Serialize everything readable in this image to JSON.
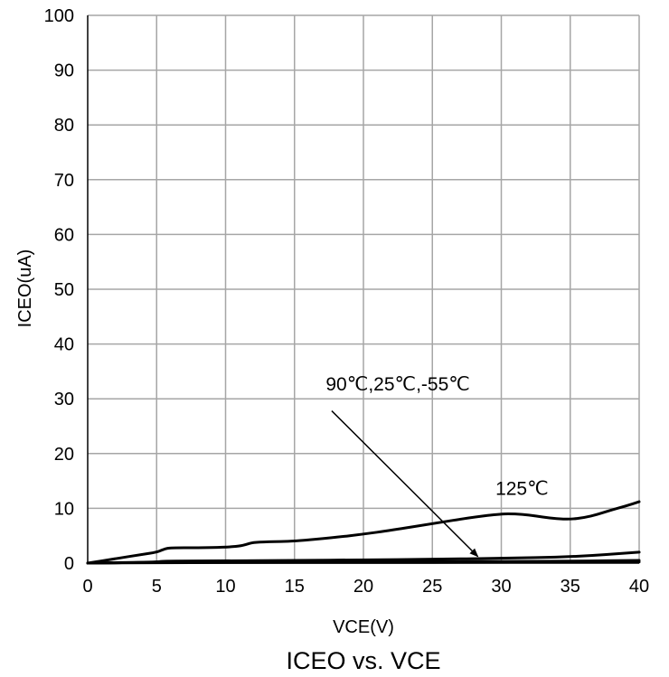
{
  "chart_data": {
    "type": "line",
    "title": "ICEO vs. VCE",
    "xlabel": "VCE(V)",
    "ylabel": "ICEO(uA)",
    "xlim": [
      0,
      40
    ],
    "ylim": [
      0,
      100
    ],
    "xticks": [
      0,
      5,
      10,
      15,
      20,
      25,
      30,
      35,
      40
    ],
    "yticks": [
      0,
      10,
      20,
      30,
      40,
      50,
      60,
      70,
      80,
      90,
      100
    ],
    "grid": true,
    "colors": {
      "grid": "#a6a6a6",
      "line": "#000000",
      "axis": "#000000"
    },
    "series": [
      {
        "name": "125℃",
        "x": [
          0,
          2,
          4,
          5,
          5.3,
          5.6,
          6,
          8,
          10,
          11,
          11.5,
          12,
          13,
          15,
          18,
          20,
          22,
          25,
          28,
          30,
          31,
          32,
          33,
          34,
          35,
          36,
          37,
          38,
          39,
          40
        ],
        "y": [
          0,
          0.8,
          1.6,
          2.0,
          2.3,
          2.6,
          2.8,
          2.8,
          2.9,
          3.1,
          3.4,
          3.8,
          3.9,
          4.0,
          4.7,
          5.3,
          6.0,
          7.2,
          8.4,
          9.0,
          9.0,
          8.8,
          8.4,
          8.1,
          8.0,
          8.3,
          8.9,
          9.7,
          10.4,
          11.2
        ]
      },
      {
        "name": "90℃",
        "x": [
          0,
          5,
          5.5,
          10,
          15,
          20,
          25,
          30,
          35,
          40
        ],
        "y": [
          0,
          0.2,
          0.4,
          0.4,
          0.5,
          0.6,
          0.7,
          0.9,
          1.1,
          2.0
        ]
      },
      {
        "name": "25℃",
        "x": [
          0,
          5,
          10,
          20,
          30,
          35,
          40
        ],
        "y": [
          0,
          0.15,
          0.2,
          0.25,
          0.3,
          0.35,
          0.5
        ]
      },
      {
        "name": "-55℃",
        "x": [
          0,
          5,
          10,
          20,
          30,
          40
        ],
        "y": [
          0,
          0.05,
          0.1,
          0.12,
          0.15,
          0.2
        ]
      }
    ],
    "annotations": [
      {
        "text": "125℃",
        "x": 31.5,
        "y": 12.5
      },
      {
        "text": "90℃,25℃,-55℃",
        "x": 22.5,
        "y": 31.5,
        "arrow_from": [
          17.7,
          27.8
        ],
        "arrow_to": [
          28.3,
          1.2
        ]
      }
    ]
  }
}
